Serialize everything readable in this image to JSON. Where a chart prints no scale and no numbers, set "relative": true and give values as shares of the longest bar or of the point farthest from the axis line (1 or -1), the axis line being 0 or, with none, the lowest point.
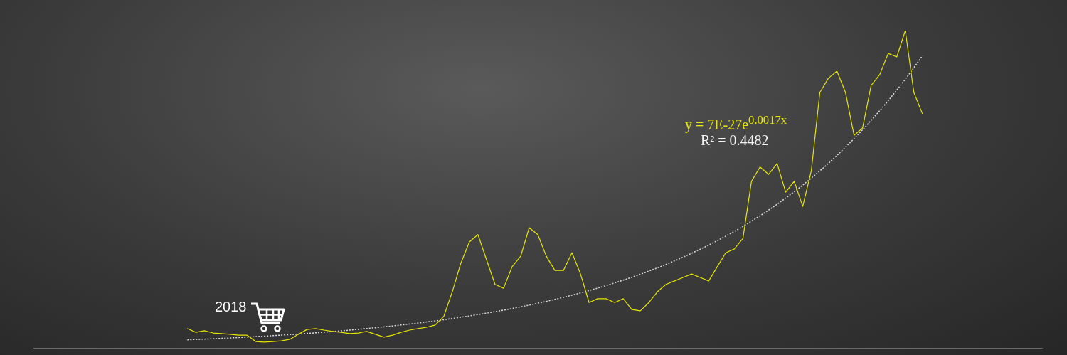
{
  "chart_data": {
    "type": "line",
    "relative": true,
    "marker": "none",
    "grid": false,
    "legend": false,
    "categories": [
      null,
      null,
      null,
      null,
      null,
      null,
      null,
      null,
      null,
      null,
      null,
      null,
      null,
      null,
      null,
      null,
      null,
      null,
      null,
      null,
      null,
      null,
      null,
      null,
      null,
      null,
      null,
      null,
      null,
      null,
      null,
      null,
      null,
      null,
      null,
      null,
      null,
      null,
      null,
      null,
      null,
      null,
      null,
      null,
      null,
      null,
      null,
      null,
      null,
      null,
      null,
      null,
      null,
      null,
      null,
      null,
      null,
      null,
      null,
      null,
      null,
      null,
      null,
      null,
      null,
      null,
      null,
      null,
      null,
      null,
      null,
      null,
      null,
      null,
      null,
      null,
      null,
      null,
      null,
      null,
      null,
      null,
      null,
      null,
      null,
      null,
      null,
      null,
      null,
      null,
      null,
      null,
      null,
      null,
      null,
      null,
      null,
      null,
      null,
      null,
      null,
      null,
      null,
      null,
      null,
      null,
      null,
      null,
      null,
      null,
      null,
      null,
      null,
      null,
      null,
      null,
      null,
      null,
      null
    ],
    "series": [
      {
        "color": "#e6e600",
        "line_style": "solid",
        "values": [
          null,
          null,
          null,
          null,
          null,
          null,
          null,
          null,
          null,
          null,
          null,
          null,
          null,
          null,
          null,
          null,
          null,
          null,
          0.061,
          0.049,
          0.054,
          0.047,
          0.045,
          0.043,
          0.04,
          0.04,
          0.02,
          0.018,
          0.02,
          0.022,
          0.027,
          0.043,
          0.058,
          0.061,
          0.056,
          0.052,
          0.049,
          0.045,
          0.047,
          0.052,
          0.043,
          0.034,
          0.04,
          0.049,
          0.056,
          0.061,
          0.065,
          0.072,
          0.099,
          0.177,
          0.267,
          0.334,
          0.357,
          0.278,
          0.2,
          0.188,
          0.256,
          0.289,
          0.379,
          0.357,
          0.289,
          0.244,
          0.244,
          0.3,
          0.233,
          0.143,
          0.155,
          0.155,
          0.143,
          0.155,
          0.121,
          0.117,
          0.143,
          0.177,
          0.2,
          0.211,
          0.222,
          0.233,
          0.222,
          0.211,
          0.256,
          0.3,
          0.312,
          0.345,
          0.525,
          0.57,
          0.547,
          0.581,
          0.491,
          0.525,
          0.446,
          0.558,
          0.805,
          0.85,
          0.872,
          0.805,
          0.67,
          0.693,
          0.827,
          0.861,
          0.928,
          0.917,
          1,
          0.805,
          0.738,
          null,
          null,
          null,
          null,
          null,
          null,
          null,
          null,
          null,
          null,
          null,
          null,
          null,
          null
        ]
      },
      {
        "type": "line",
        "color": "#d9d9d9",
        "line_style": "dotted",
        "values": [
          null,
          null,
          null,
          null,
          null,
          null,
          null,
          null,
          null,
          null,
          null,
          null,
          null,
          null,
          null,
          null,
          null,
          null,
          0.0254,
          0.0265,
          0.0276,
          0.0288,
          0.03,
          0.0313,
          0.0326,
          0.034,
          0.0355,
          0.037,
          0.0386,
          0.0402,
          0.0419,
          0.0437,
          0.0456,
          0.0475,
          0.0495,
          0.0516,
          0.0538,
          0.0561,
          0.0585,
          0.061,
          0.0636,
          0.0663,
          0.0692,
          0.0721,
          0.0752,
          0.0784,
          0.0817,
          0.0852,
          0.0888,
          0.0926,
          0.0966,
          0.1007,
          0.105,
          0.1095,
          0.1141,
          0.119,
          0.1241,
          0.1294,
          0.1349,
          0.1406,
          0.1466,
          0.1529,
          0.1594,
          0.1662,
          0.1733,
          0.1807,
          0.1884,
          0.1964,
          0.2048,
          0.2135,
          0.2226,
          0.2321,
          0.242,
          0.2523,
          0.2631,
          0.2743,
          0.286,
          0.2982,
          0.3109,
          0.3242,
          0.338,
          0.3524,
          0.3674,
          0.3831,
          0.3994,
          0.4164,
          0.4342,
          0.4527,
          0.472,
          0.4921,
          0.5131,
          0.535,
          0.5578,
          0.5816,
          0.6064,
          0.6323,
          0.6592,
          0.6873,
          0.7166,
          0.7472,
          0.7791,
          0.8123,
          0.8469,
          0.883,
          0.9207,
          null,
          null,
          null,
          null,
          null,
          null,
          null,
          null,
          null,
          null,
          null,
          null,
          null,
          null
        ]
      }
    ],
    "annotations": [
      "y = 7E-27e$^{0.0017x}$",
      "R² = 0.4482",
      "2018"
    ]
  }
}
